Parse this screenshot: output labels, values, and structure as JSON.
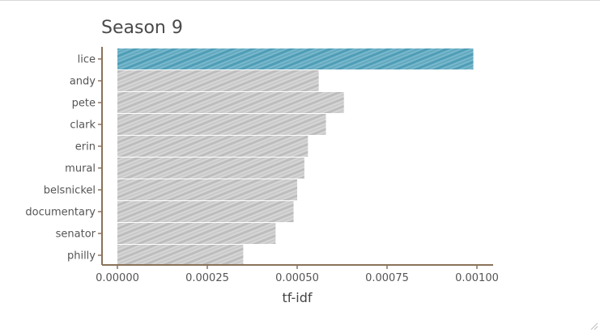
{
  "chart_data": {
    "type": "bar",
    "orientation": "horizontal",
    "title": "Season 9",
    "xlabel": "tf-idf",
    "ylabel": "",
    "xlim": [
      0,
      0.00104
    ],
    "xticks": [
      "0.00000",
      "0.00025",
      "0.00050",
      "0.00075",
      "0.00100"
    ],
    "xtick_values": [
      0,
      0.00025,
      0.0005,
      0.00075,
      0.001
    ],
    "categories": [
      "lice",
      "andy",
      "pete",
      "clark",
      "erin",
      "mural",
      "belsnickel",
      "documentary",
      "senator",
      "philly"
    ],
    "values": [
      0.00099,
      0.00056,
      0.00063,
      0.00058,
      0.00053,
      0.00052,
      0.0005,
      0.00049,
      0.00044,
      0.00035
    ],
    "highlight_category": "lice",
    "highlight_color": "#5aa5bd",
    "bar_color": "#c4c4c4",
    "axis_color": "#8b735a",
    "style": "hand-drawn hatch",
    "grid": false
  }
}
